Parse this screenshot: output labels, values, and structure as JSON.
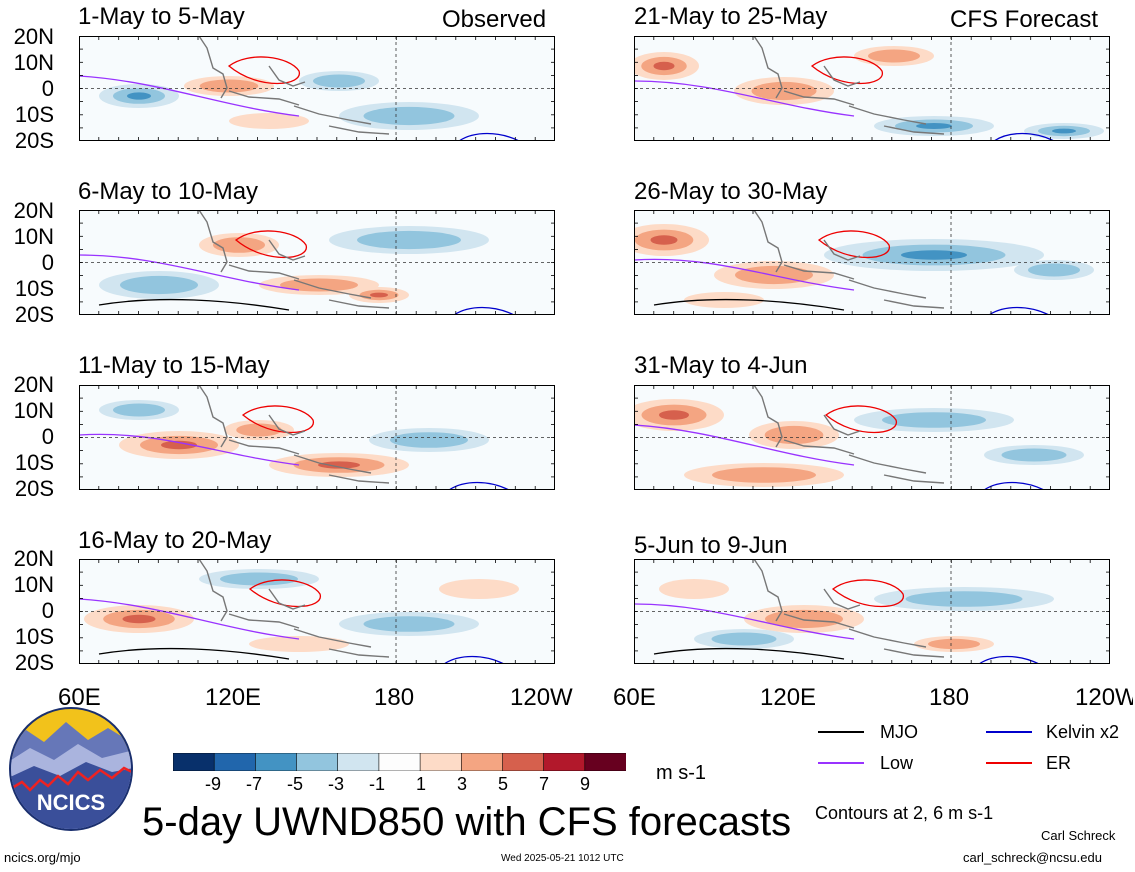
{
  "headers": {
    "observed": "Observed",
    "forecast": "CFS Forecast"
  },
  "lat_labels": [
    "20N",
    "10N",
    "0",
    "10S",
    "20S"
  ],
  "lon_labels": [
    "60E",
    "120E",
    "180",
    "120W"
  ],
  "panels": {
    "left": [
      {
        "title": "1-May to 5-May"
      },
      {
        "title": "6-May to 10-May"
      },
      {
        "title": "11-May to 15-May"
      },
      {
        "title": "16-May to 20-May"
      }
    ],
    "right": [
      {
        "title": "21-May to 25-May"
      },
      {
        "title": "26-May to 30-May"
      },
      {
        "title": "31-May to 4-Jun"
      },
      {
        "title": "5-Jun to 9-Jun"
      }
    ]
  },
  "colorbar": {
    "labels": [
      "-9",
      "-7",
      "-5",
      "-3",
      "-1",
      "1",
      "3",
      "5",
      "7",
      "9"
    ],
    "colors": [
      "#08306b",
      "#2166ac",
      "#4393c3",
      "#92c5de",
      "#d1e5f0",
      "#fdfdfd",
      "#fddbc7",
      "#f4a582",
      "#d6604d",
      "#b2182b",
      "#67001f"
    ],
    "units": "m s-1"
  },
  "legend": {
    "items": [
      {
        "label": "MJO",
        "color": "#000000"
      },
      {
        "label": "Kelvin x2",
        "color": "#0000cc"
      },
      {
        "label": "Low",
        "color": "#9933ff"
      },
      {
        "label": "ER",
        "color": "#ee0000"
      }
    ],
    "contours_note": "Contours at 2, 6 m s-1"
  },
  "main_title": "5-day UWND850 with CFS forecasts",
  "logo_text": "NCICS",
  "footer": {
    "site": "ncics.org/mjo",
    "timestamp": "Wed 2025-05-21 1012 UTC",
    "author": "Carl Schreck",
    "email": "carl_schreck@ncsu.edu"
  }
}
